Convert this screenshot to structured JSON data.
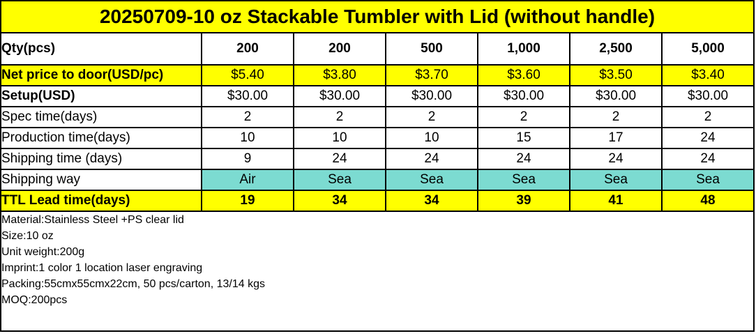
{
  "title": "20250709-10 oz Stackable Tumbler with Lid (without handle)",
  "colors": {
    "title_bg": "#FFFF00",
    "highlight_yellow": "#FFFF00",
    "shipping_teal": "#7CDBD1",
    "border": "#000000",
    "text": "#000000"
  },
  "table": {
    "rows": [
      {
        "label": "Qty(pcs)",
        "values": [
          "200",
          "200",
          "500",
          "1,000",
          "2,500",
          "5,000"
        ],
        "label_bold": true,
        "values_bold": true,
        "row_bg": null,
        "values_bg": null,
        "tall": true
      },
      {
        "label": "Net price to door(USD/pc)",
        "values": [
          "$5.40",
          "$3.80",
          "$3.70",
          "$3.60",
          "$3.50",
          "$3.40"
        ],
        "label_bold": true,
        "values_bold": false,
        "row_bg": "#FFFF00",
        "values_bg": null,
        "tall": false
      },
      {
        "label": "Setup(USD)",
        "values": [
          "$30.00",
          "$30.00",
          "$30.00",
          "$30.00",
          "$30.00",
          "$30.00"
        ],
        "label_bold": true,
        "values_bold": false,
        "row_bg": null,
        "values_bg": null,
        "tall": false
      },
      {
        "label": "Spec time(days)",
        "values": [
          "2",
          "2",
          "2",
          "2",
          "2",
          "2"
        ],
        "label_bold": false,
        "values_bold": false,
        "row_bg": null,
        "values_bg": null,
        "tall": false
      },
      {
        "label": "Production time(days)",
        "values": [
          "10",
          "10",
          "10",
          "15",
          "17",
          "24"
        ],
        "label_bold": false,
        "values_bold": false,
        "row_bg": null,
        "values_bg": null,
        "tall": false
      },
      {
        "label": "Shipping time (days)",
        "values": [
          "9",
          "24",
          "24",
          "24",
          "24",
          "24"
        ],
        "label_bold": false,
        "values_bold": false,
        "row_bg": null,
        "values_bg": null,
        "tall": false
      },
      {
        "label": "Shipping way",
        "values": [
          "Air",
          "Sea",
          "Sea",
          "Sea",
          "Sea",
          "Sea"
        ],
        "label_bold": false,
        "values_bold": false,
        "row_bg": null,
        "values_bg": "#7CDBD1",
        "tall": false
      },
      {
        "label": "TTL Lead time(days)",
        "values": [
          "19",
          "34",
          "34",
          "39",
          "41",
          "48"
        ],
        "label_bold": true,
        "values_bold": true,
        "row_bg": "#FFFF00",
        "values_bg": null,
        "tall": false
      }
    ]
  },
  "notes": [
    "Material:Stainless Steel +PS clear lid",
    "Size:10 oz",
    "Unit weight:200g",
    "Imprint:1 color 1 location laser engraving",
    "Packing:55cmx55cmx22cm, 50 pcs/carton, 13/14 kgs",
    "MOQ:200pcs"
  ]
}
